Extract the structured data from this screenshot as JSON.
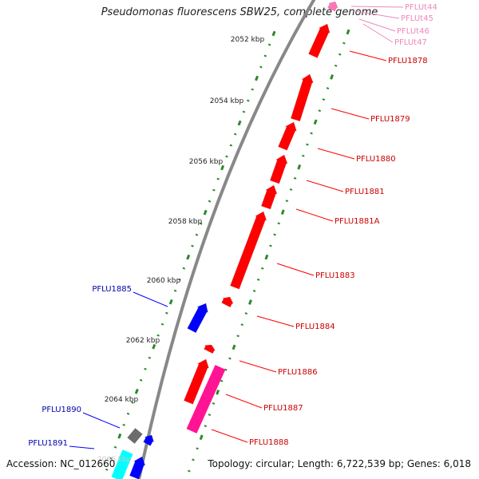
{
  "title": "Pseudomonas fluorescens SBW25, complete genome",
  "accession": "Accession: NC_012660",
  "topology": "Topology: circular; Length: 6,722,539 bp; Genes: 6,018",
  "colors": {
    "backbone": "#888888",
    "forward_gene": "#ff0000",
    "reverse_gene": "#0000ff",
    "trna": "#ff77b4",
    "rrna": "#ff1493",
    "other": "#6c6c6c",
    "misc": "#00ffff",
    "ticks": "#2a8a2a",
    "forward_label": "#cc0000",
    "reverse_label": "#0000aa",
    "trna_label": "#ee88bb"
  },
  "scale_labels": [
    "2052 kbp",
    "2054 kbp",
    "2056 kbp",
    "2058 kbp",
    "2060 kbp",
    "2062 kbp",
    "2064 kbp"
  ],
  "forward_labels": [
    "PFLU1878",
    "PFLU1879",
    "PFLU1880",
    "PFLU1881",
    "PFLU1881A",
    "PFLU1883",
    "PFLU1884",
    "PFLU1886",
    "PFLU1887",
    "PFLU1888"
  ],
  "reverse_labels": [
    "PFLU1885",
    "PFLU1890",
    "PFLU1891"
  ],
  "trna_labels": [
    "PFLUt44",
    "PFLUt45",
    "PFLUt46",
    "PFLUt47"
  ]
}
